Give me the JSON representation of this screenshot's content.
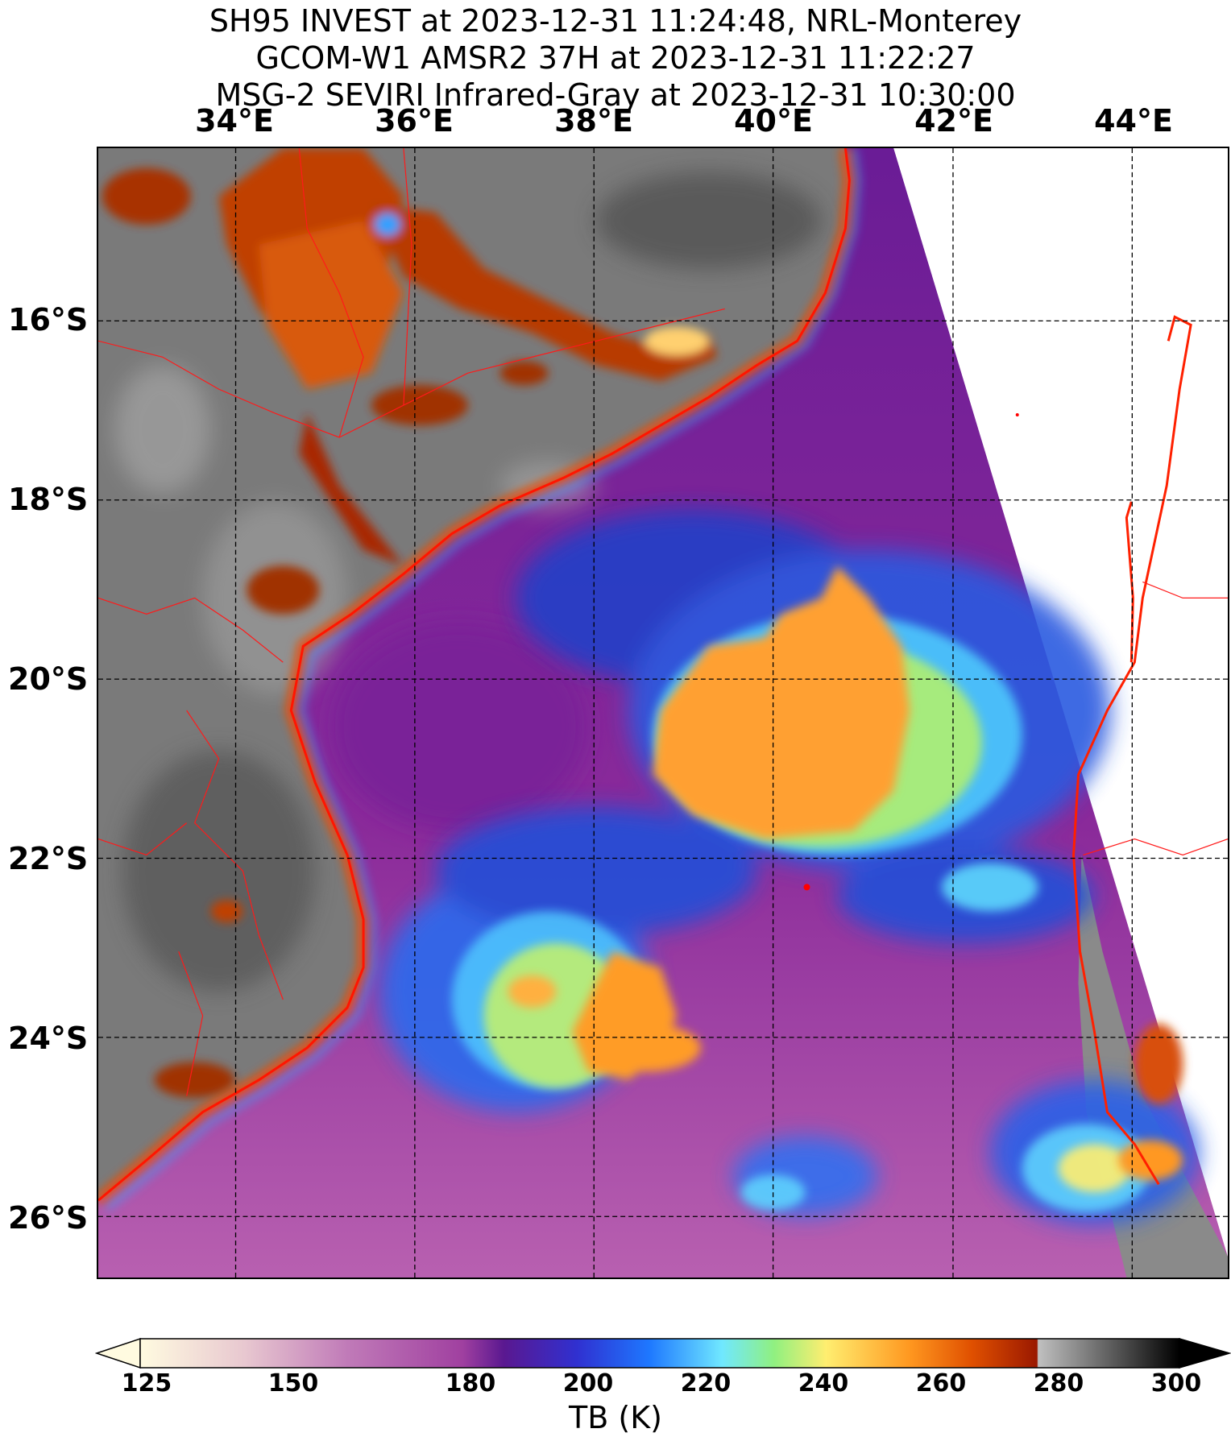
{
  "title_lines": [
    "SH95 INVEST at 2023-12-31 11:24:48, NRL-Monterey",
    "GCOM-W1 AMSR2 37H at 2023-12-31 11:22:27",
    "MSG-2 SEVIRI Infrared-Gray at 2023-12-31 10:30:00"
  ],
  "lon_labels": [
    "34°E",
    "36°E",
    "38°E",
    "40°E",
    "42°E",
    "44°E"
  ],
  "lat_labels": [
    "16°S",
    "18°S",
    "20°S",
    "22°S",
    "24°S",
    "26°S"
  ],
  "colorbar": {
    "ticks": [
      "125",
      "150",
      "180",
      "200",
      "220",
      "240",
      "260",
      "280",
      "300"
    ],
    "label": "TB (K)",
    "colors": [
      "#fffbe0",
      "#e8c8d0",
      "#c07ab8",
      "#a040a0",
      "#5a1890",
      "#3030d0",
      "#1e78ff",
      "#70e8ff",
      "#90f080",
      "#ffee70",
      "#ff9820",
      "#e05000",
      "#9a1800",
      "#c0c0c0",
      "#000000"
    ]
  },
  "map": {
    "land_color": "#7a7a7a",
    "ocean_color": "#8a2a9a",
    "coast_color": "#ff2000",
    "border_color": "#ff1010",
    "grid_style": "dashed",
    "swath_missing_color": "#ffffff"
  }
}
